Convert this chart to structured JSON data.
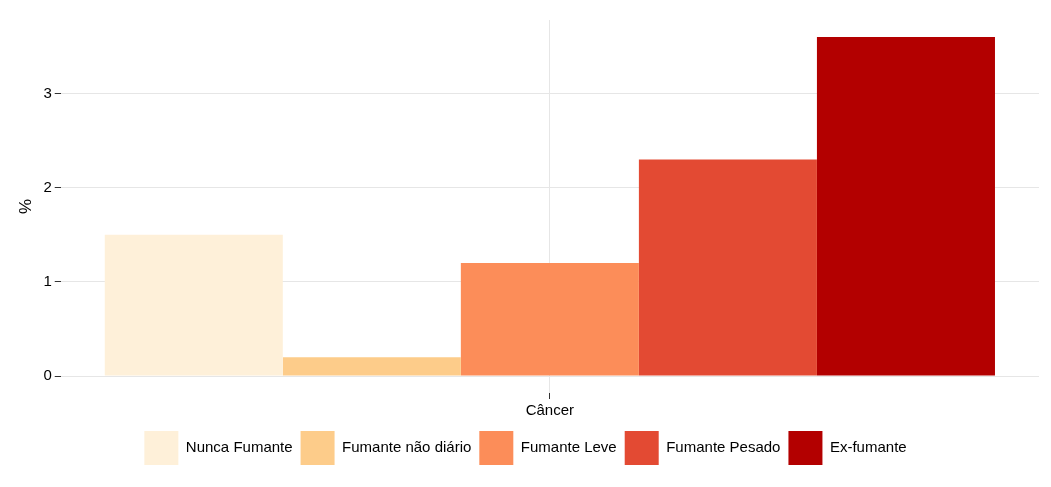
{
  "chart_data": {
    "type": "bar",
    "ylabel": "%",
    "categories": [
      "Câncer"
    ],
    "series": [
      {
        "name": "Nunca Fumante",
        "color": "#fef0d9",
        "values": [
          1.5
        ]
      },
      {
        "name": "Fumante não diário",
        "color": "#fdcc8a",
        "values": [
          0.2
        ]
      },
      {
        "name": "Fumante Leve",
        "color": "#fc8d59",
        "values": [
          1.2
        ]
      },
      {
        "name": "Fumante Pesado",
        "color": "#e34a33",
        "values": [
          2.3
        ]
      },
      {
        "name": "Ex-fumante",
        "color": "#b30000",
        "values": [
          3.6
        ]
      }
    ],
    "ylim": [
      -0.18,
      3.78
    ],
    "yticks": [
      0,
      1,
      2,
      3
    ],
    "grid": true,
    "legend": "bottom"
  }
}
